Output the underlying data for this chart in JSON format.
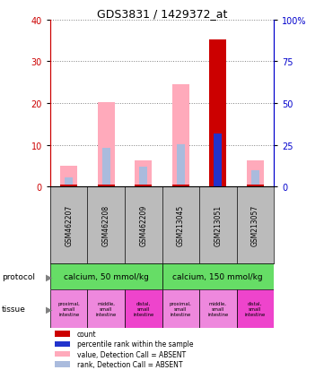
{
  "title": "GDS3831 / 1429372_at",
  "samples": [
    "GSM462207",
    "GSM462208",
    "GSM462209",
    "GSM213045",
    "GSM213051",
    "GSM213057"
  ],
  "pink_bar_values": [
    5.0,
    20.2,
    6.2,
    24.5,
    35.3,
    6.2
  ],
  "blue_rank_values": [
    2.2,
    9.2,
    4.8,
    10.2,
    12.8,
    4.0
  ],
  "red_count_values": [
    0.0,
    0.0,
    0.0,
    0.0,
    35.3,
    0.0
  ],
  "light_blue_values": [
    1.2,
    0.0,
    1.0,
    0.0,
    0.0,
    1.5
  ],
  "small_red_bottom_values": [
    0.6,
    0.6,
    0.6,
    0.6,
    0.0,
    0.6
  ],
  "ylim_left": [
    0,
    40
  ],
  "ylim_right": [
    0,
    100
  ],
  "yticks_left": [
    0,
    10,
    20,
    30,
    40
  ],
  "yticks_right": [
    0,
    25,
    50,
    75,
    100
  ],
  "ytick_labels_right": [
    "0",
    "25",
    "50",
    "75",
    "100%"
  ],
  "tissue_labels": [
    "proximal,\nsmall\nintestine",
    "middle,\nsmall\nintestine",
    "distal,\nsmall\nintestine",
    "proximal,\nsmall\nintestine",
    "middle,\nsmall\nintestine",
    "distal,\nsmall\nintestine"
  ],
  "tissue_colors": [
    "#ee88dd",
    "#ee88dd",
    "#ee44cc",
    "#ee88dd",
    "#ee88dd",
    "#ee44cc"
  ],
  "color_pink": "#ffaabb",
  "color_red": "#cc0000",
  "color_blue": "#2233cc",
  "color_light_blue": "#aabbdd",
  "color_sample_bg": "#bbbbbb",
  "color_protocol_green": "#66dd66",
  "left_axis_color": "#cc0000",
  "right_axis_color": "#0000cc",
  "protocol1_label": "calcium, 50 mmol/kg",
  "protocol2_label": "calcium, 150 mmol/kg",
  "legend_items": [
    {
      "color": "#cc0000",
      "label": "count"
    },
    {
      "color": "#2233cc",
      "label": "percentile rank within the sample"
    },
    {
      "color": "#ffaabb",
      "label": "value, Detection Call = ABSENT"
    },
    {
      "color": "#aabbdd",
      "label": "rank, Detection Call = ABSENT"
    }
  ]
}
